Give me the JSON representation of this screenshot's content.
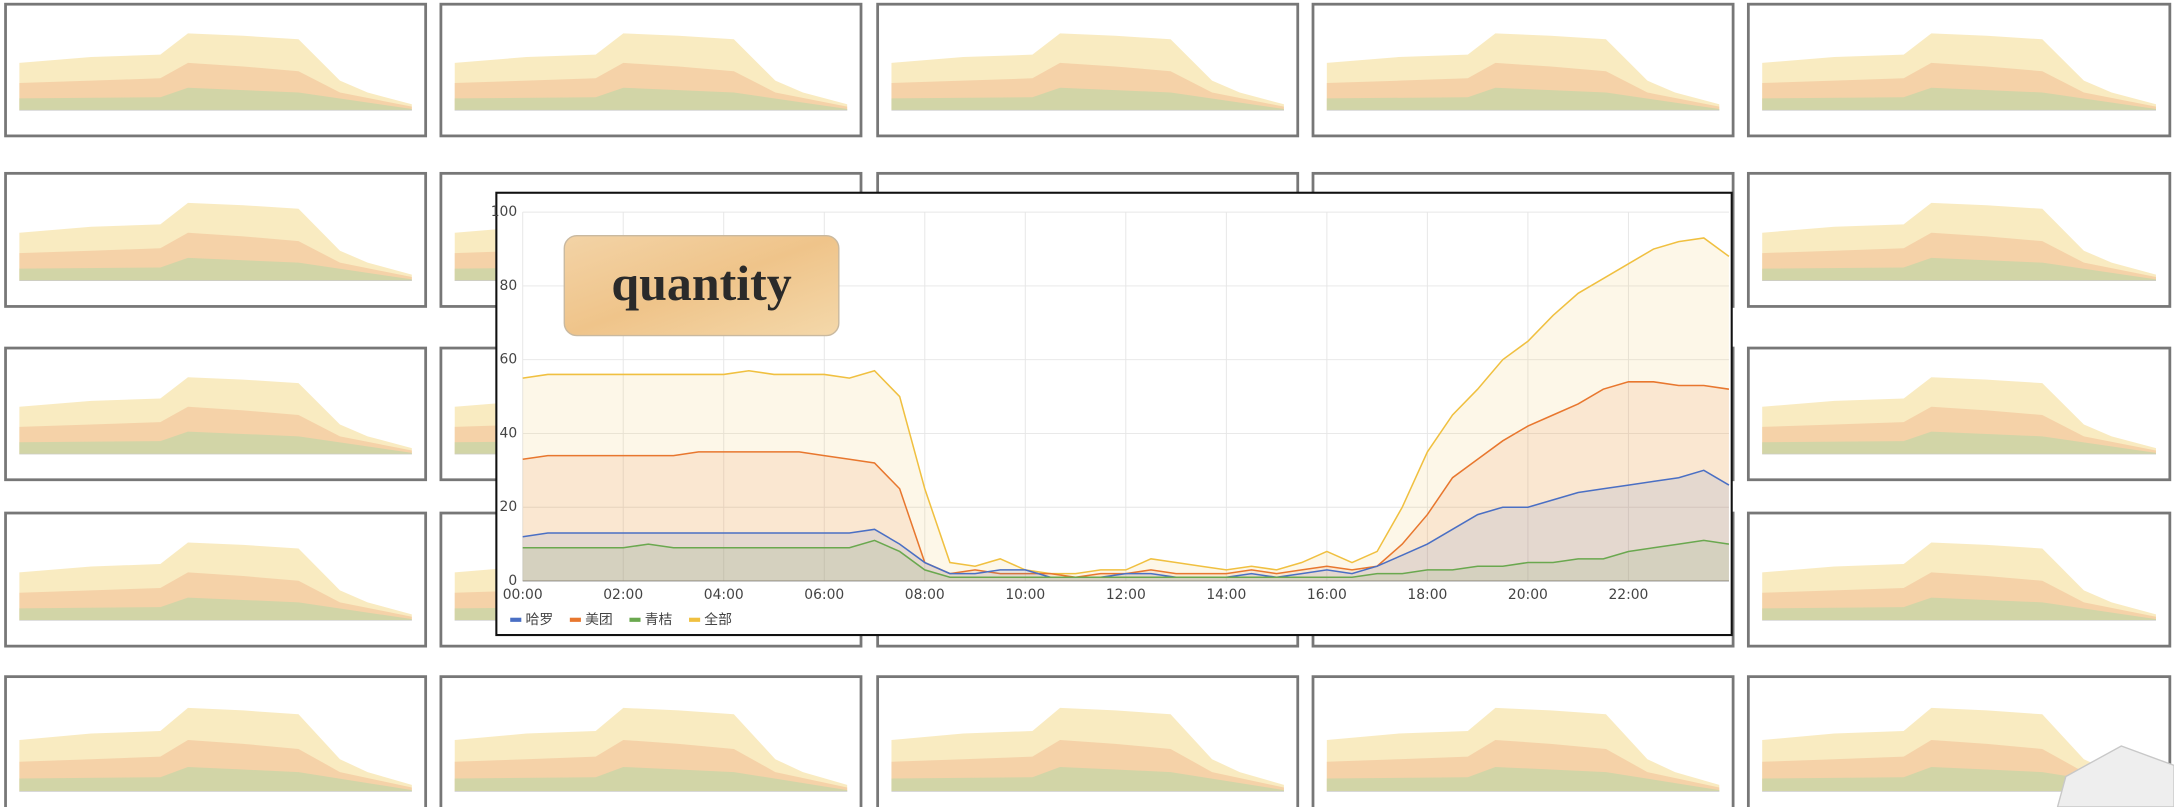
{
  "chart_data": {
    "type": "area",
    "annotation": "quantity",
    "x": [
      0,
      0.5,
      1,
      1.5,
      2,
      2.5,
      3,
      3.5,
      4,
      4.5,
      5,
      5.5,
      6,
      6.5,
      7,
      7.5,
      8,
      8.5,
      9,
      9.5,
      10,
      10.5,
      11,
      11.5,
      12,
      12.5,
      13,
      13.5,
      14,
      14.5,
      15,
      15.5,
      16,
      16.5,
      17,
      17.5,
      18,
      18.5,
      19,
      19.5,
      20,
      20.5,
      21,
      21.5,
      22,
      22.5,
      23,
      23.5,
      24
    ],
    "series": [
      {
        "name": "哈罗",
        "color": "#4a6fc4",
        "values": [
          12,
          13,
          13,
          13,
          13,
          13,
          13,
          13,
          13,
          13,
          13,
          13,
          13,
          13,
          14,
          10,
          5,
          2,
          2,
          3,
          3,
          1,
          1,
          1,
          2,
          2,
          1,
          1,
          1,
          2,
          1,
          2,
          3,
          2,
          4,
          7,
          10,
          14,
          18,
          20,
          20,
          22,
          24,
          25,
          26,
          27,
          28,
          30,
          26
        ]
      },
      {
        "name": "美团",
        "color": "#e8772e",
        "values": [
          33,
          34,
          34,
          34,
          34,
          34,
          34,
          35,
          35,
          35,
          35,
          35,
          34,
          33,
          32,
          25,
          5,
          2,
          3,
          2,
          2,
          2,
          1,
          2,
          2,
          3,
          2,
          2,
          2,
          3,
          2,
          3,
          4,
          3,
          4,
          10,
          18,
          28,
          33,
          38,
          42,
          45,
          48,
          52,
          54,
          54,
          53,
          53,
          52
        ]
      },
      {
        "name": "青桔",
        "color": "#6aa84f",
        "values": [
          9,
          9,
          9,
          9,
          9,
          10,
          9,
          9,
          9,
          9,
          9,
          9,
          9,
          9,
          11,
          8,
          3,
          1,
          1,
          1,
          1,
          1,
          1,
          1,
          1,
          1,
          1,
          1,
          1,
          1,
          1,
          1,
          1,
          1,
          2,
          2,
          3,
          3,
          4,
          4,
          5,
          5,
          6,
          6,
          8,
          9,
          10,
          11,
          10
        ]
      },
      {
        "name": "全部",
        "color": "#f0c040",
        "values": [
          55,
          56,
          56,
          56,
          56,
          56,
          56,
          56,
          56,
          57,
          56,
          56,
          56,
          55,
          57,
          50,
          25,
          5,
          4,
          6,
          3,
          2,
          2,
          3,
          3,
          6,
          5,
          4,
          3,
          4,
          3,
          5,
          8,
          5,
          8,
          20,
          35,
          45,
          52,
          60,
          65,
          72,
          78,
          82,
          86,
          90,
          92,
          93,
          88
        ]
      }
    ],
    "xlim": [
      0,
      24
    ],
    "xticks": [
      {
        "value": 0,
        "label": "00:00"
      },
      {
        "value": 2,
        "label": "02:00"
      },
      {
        "value": 4,
        "label": "04:00"
      },
      {
        "value": 6,
        "label": "06:00"
      },
      {
        "value": 8,
        "label": "08:00"
      },
      {
        "value": 10,
        "label": "10:00"
      },
      {
        "value": 12,
        "label": "12:00"
      },
      {
        "value": 14,
        "label": "14:00"
      },
      {
        "value": 16,
        "label": "16:00"
      },
      {
        "value": 18,
        "label": "18:00"
      },
      {
        "value": 20,
        "label": "20:00"
      },
      {
        "value": 22,
        "label": "22:00"
      }
    ],
    "ylim": [
      0,
      100
    ],
    "yticks": [
      0,
      20,
      40,
      60,
      80,
      100
    ],
    "grid": true
  }
}
